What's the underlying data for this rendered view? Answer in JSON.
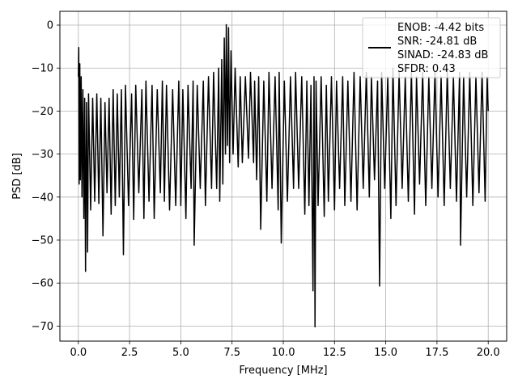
{
  "chart_data": {
    "type": "line",
    "xlabel": "Frequency [MHz]",
    "ylabel": "PSD [dB]",
    "xlim": [
      -0.9,
      20.9
    ],
    "ylim": [
      -73.5,
      3.2
    ],
    "xticks": [
      0.0,
      2.5,
      5.0,
      7.5,
      10.0,
      12.5,
      15.0,
      17.5,
      20.0
    ],
    "xtick_labels": [
      "0.0",
      "2.5",
      "5.0",
      "7.5",
      "10.0",
      "12.5",
      "15.0",
      "17.5",
      "20.0"
    ],
    "yticks": [
      0,
      -10,
      -20,
      -30,
      -40,
      -50,
      -60,
      -70
    ],
    "ytick_labels": [
      "0",
      "−10",
      "−20",
      "−30",
      "−40",
      "−50",
      "−60",
      "−70"
    ],
    "grid": true,
    "legend_position": "top-right",
    "legend": [
      "ENOB: -4.42 bits",
      "SNR: -24.81 dB",
      "SINAD: -24.83 dB",
      "SFDR: 0.43"
    ],
    "series": [
      {
        "color": "#000000",
        "points": [
          [
            0.0,
            -12
          ],
          [
            0.02,
            -5.2
          ],
          [
            0.04,
            -37
          ],
          [
            0.07,
            -9
          ],
          [
            0.1,
            -36
          ],
          [
            0.14,
            -12
          ],
          [
            0.18,
            -40
          ],
          [
            0.22,
            -15
          ],
          [
            0.27,
            -45
          ],
          [
            0.31,
            -17
          ],
          [
            0.35,
            -57.3
          ],
          [
            0.4,
            -18
          ],
          [
            0.45,
            -52.8
          ],
          [
            0.5,
            -16
          ],
          [
            0.6,
            -43
          ],
          [
            0.7,
            -17
          ],
          [
            0.8,
            -41
          ],
          [
            0.9,
            -16
          ],
          [
            1.0,
            -41.5
          ],
          [
            1.1,
            -17
          ],
          [
            1.2,
            -49
          ],
          [
            1.3,
            -18
          ],
          [
            1.4,
            -39
          ],
          [
            1.5,
            -17
          ],
          [
            1.6,
            -44
          ],
          [
            1.7,
            -15
          ],
          [
            1.8,
            -42
          ],
          [
            1.9,
            -16
          ],
          [
            2.0,
            -40
          ],
          [
            2.1,
            -15
          ],
          [
            2.2,
            -53.4
          ],
          [
            2.3,
            -14
          ],
          [
            2.45,
            -42
          ],
          [
            2.6,
            -16
          ],
          [
            2.7,
            -45.2
          ],
          [
            2.8,
            -14
          ],
          [
            2.95,
            -39
          ],
          [
            3.1,
            -15
          ],
          [
            3.2,
            -45
          ],
          [
            3.3,
            -13
          ],
          [
            3.45,
            -41
          ],
          [
            3.6,
            -14
          ],
          [
            3.7,
            -45
          ],
          [
            3.85,
            -15
          ],
          [
            4.0,
            -39
          ],
          [
            4.1,
            -13
          ],
          [
            4.2,
            -41
          ],
          [
            4.3,
            -14
          ],
          [
            4.45,
            -43
          ],
          [
            4.6,
            -15
          ],
          [
            4.75,
            -42
          ],
          [
            4.9,
            -13
          ],
          [
            5.0,
            -42
          ],
          [
            5.1,
            -15
          ],
          [
            5.25,
            -45
          ],
          [
            5.35,
            -14
          ],
          [
            5.5,
            -38
          ],
          [
            5.6,
            -13
          ],
          [
            5.65,
            -51.2
          ],
          [
            5.8,
            -14
          ],
          [
            5.95,
            -38
          ],
          [
            6.1,
            -13
          ],
          [
            6.2,
            -42
          ],
          [
            6.35,
            -12
          ],
          [
            6.5,
            -38
          ],
          [
            6.6,
            -11
          ],
          [
            6.75,
            -38
          ],
          [
            6.85,
            -10
          ],
          [
            6.9,
            -41
          ],
          [
            7.0,
            -8
          ],
          [
            7.05,
            -37
          ],
          [
            7.12,
            -3
          ],
          [
            7.18,
            -30
          ],
          [
            7.22,
            0.1
          ],
          [
            7.28,
            -28
          ],
          [
            7.33,
            -0.6
          ],
          [
            7.38,
            -32
          ],
          [
            7.45,
            -6
          ],
          [
            7.55,
            -30
          ],
          [
            7.65,
            -10
          ],
          [
            7.8,
            -33
          ],
          [
            7.9,
            -12
          ],
          [
            8.0,
            -32
          ],
          [
            8.15,
            -12
          ],
          [
            8.3,
            -31
          ],
          [
            8.4,
            -11
          ],
          [
            8.55,
            -32
          ],
          [
            8.6,
            -13
          ],
          [
            8.7,
            -36
          ],
          [
            8.8,
            -12
          ],
          [
            8.9,
            -47.5
          ],
          [
            9.05,
            -13
          ],
          [
            9.2,
            -41
          ],
          [
            9.3,
            -11
          ],
          [
            9.45,
            -38
          ],
          [
            9.6,
            -12
          ],
          [
            9.75,
            -43
          ],
          [
            9.8,
            -11
          ],
          [
            9.9,
            -50.7
          ],
          [
            10.05,
            -13
          ],
          [
            10.2,
            -41
          ],
          [
            10.35,
            -12
          ],
          [
            10.5,
            -38
          ],
          [
            10.6,
            -11
          ],
          [
            10.75,
            -38
          ],
          [
            10.9,
            -12
          ],
          [
            11.05,
            -44
          ],
          [
            11.15,
            -13
          ],
          [
            11.25,
            -42
          ],
          [
            11.35,
            -14
          ],
          [
            11.45,
            -61.8
          ],
          [
            11.5,
            -12
          ],
          [
            11.55,
            -70.2
          ],
          [
            11.6,
            -13
          ],
          [
            11.7,
            -42
          ],
          [
            11.85,
            -12
          ],
          [
            12.0,
            -44.5
          ],
          [
            12.1,
            -14
          ],
          [
            12.2,
            -41
          ],
          [
            12.35,
            -12
          ],
          [
            12.5,
            -43
          ],
          [
            12.6,
            -13
          ],
          [
            12.75,
            -38
          ],
          [
            12.9,
            -12
          ],
          [
            13.0,
            -42
          ],
          [
            13.15,
            -13
          ],
          [
            13.3,
            -41
          ],
          [
            13.45,
            -11
          ],
          [
            13.6,
            -43
          ],
          [
            13.75,
            -12
          ],
          [
            13.9,
            -38
          ],
          [
            14.05,
            -11
          ],
          [
            14.2,
            -40
          ],
          [
            14.3,
            -12
          ],
          [
            14.45,
            -36
          ],
          [
            14.6,
            -13
          ],
          [
            14.7,
            -60.7
          ],
          [
            14.8,
            -11
          ],
          [
            14.95,
            -38
          ],
          [
            15.1,
            -12
          ],
          [
            15.25,
            -45
          ],
          [
            15.35,
            -10
          ],
          [
            15.5,
            -42
          ],
          [
            15.65,
            -11
          ],
          [
            15.8,
            -38
          ],
          [
            15.95,
            -12
          ],
          [
            16.1,
            -41
          ],
          [
            16.25,
            -11
          ],
          [
            16.4,
            -44
          ],
          [
            16.5,
            -12
          ],
          [
            16.65,
            -37
          ],
          [
            16.8,
            -11
          ],
          [
            16.95,
            -42
          ],
          [
            17.1,
            -12
          ],
          [
            17.25,
            -38
          ],
          [
            17.4,
            -11
          ],
          [
            17.55,
            -40
          ],
          [
            17.7,
            -12
          ],
          [
            17.85,
            -42
          ],
          [
            18.0,
            -11
          ],
          [
            18.15,
            -38
          ],
          [
            18.3,
            -12
          ],
          [
            18.45,
            -41
          ],
          [
            18.6,
            -11
          ],
          [
            18.65,
            -51.2
          ],
          [
            18.8,
            -12
          ],
          [
            18.95,
            -40
          ],
          [
            19.1,
            -11
          ],
          [
            19.25,
            -42
          ],
          [
            19.4,
            -12
          ],
          [
            19.55,
            -39
          ],
          [
            19.7,
            -11
          ],
          [
            19.85,
            -41
          ],
          [
            19.95,
            -12
          ],
          [
            20.0,
            -20
          ]
        ]
      }
    ]
  }
}
